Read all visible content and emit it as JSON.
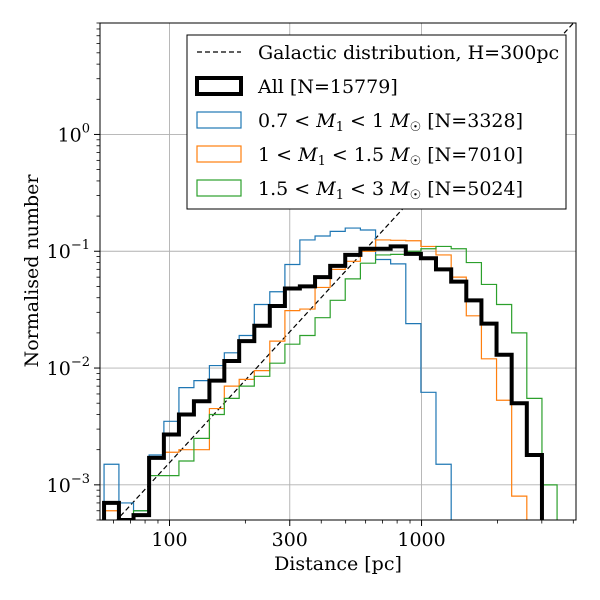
{
  "chart_data": {
    "type": "line",
    "subtype": "step-histogram",
    "xscale": "log",
    "yscale": "log",
    "xlabel": "Distance [pc]",
    "ylabel": "Normalised number",
    "xlim": [
      53,
      4100
    ],
    "ylim": [
      0.0005,
      9
    ],
    "x_ticks": [
      {
        "value": 100,
        "label": "100"
      },
      {
        "value": 300,
        "label": "300"
      },
      {
        "value": 1000,
        "label": "1000"
      }
    ],
    "y_ticks": [
      {
        "value": 0.001,
        "base": "10",
        "exp": "−3"
      },
      {
        "value": 0.01,
        "base": "10",
        "exp": "−2"
      },
      {
        "value": 0.1,
        "base": "10",
        "exp": "−1"
      },
      {
        "value": 1,
        "base": "10",
        "exp": "0"
      }
    ],
    "grid": true,
    "legend_position": "top-right",
    "bin_edges": [
      55,
      63,
      72,
      83,
      95,
      109,
      125,
      144,
      165,
      189,
      217,
      250,
      287,
      329,
      378,
      434,
      498,
      572,
      657,
      754,
      866,
      994,
      1141,
      1311,
      1505,
      1728,
      1984,
      2278,
      2616,
      3004,
      3449,
      3960
    ],
    "reference_line": {
      "name": "Galactic distribution, H=300pc",
      "color": "#000000",
      "style": "dashed",
      "points": [
        [
          55,
          0.00038
        ],
        [
          4100,
          9.5
        ]
      ]
    },
    "series": [
      {
        "name": "0.7 < M1 < 1 M☉ [N=3328]",
        "legend_parts": [
          "0.7 < ",
          "M",
          "1",
          " < 1 ",
          "M",
          "☉",
          " [N=3328]"
        ],
        "color": "#1f77b4",
        "width": 1.2,
        "values": [
          0.0015,
          0.0007,
          0.0006,
          0.0018,
          0.0035,
          0.0068,
          0.0078,
          0.0105,
          0.0135,
          0.019,
          0.035,
          0.045,
          0.077,
          0.125,
          0.135,
          0.148,
          0.158,
          0.152,
          0.085,
          0.078,
          0.024,
          0.0062,
          0.0015,
          0,
          0,
          0,
          0,
          0,
          0,
          0,
          0
        ]
      },
      {
        "name": "1 < M1 < 1.5 M☉ [N=7010]",
        "legend_parts": [
          "1 < ",
          "M",
          "1",
          " < 1.5 ",
          "M",
          "☉",
          " [N=7010]"
        ],
        "color": "#ff7f0e",
        "width": 1.2,
        "values": [
          0.0006,
          0.0005,
          0.00055,
          0.0017,
          0.0019,
          0.002,
          0.002,
          0.0045,
          0.007,
          0.008,
          0.0095,
          0.017,
          0.031,
          0.032,
          0.049,
          0.07,
          0.082,
          0.1,
          0.125,
          0.124,
          0.123,
          0.11,
          0.093,
          0.06,
          0.028,
          0.012,
          0.0053,
          0.0008,
          0,
          0,
          0
        ]
      },
      {
        "name": "1.5 < M1 < 3 M☉ [N=5024]",
        "legend_parts": [
          "1.5 < ",
          "M",
          "1",
          " < 3 ",
          "M",
          "☉",
          " [N=5024]"
        ],
        "color": "#2ca02c",
        "width": 1.2,
        "values": [
          0.0004,
          0.00035,
          0.0006,
          0.0012,
          0.0012,
          0.0016,
          0.0025,
          0.004,
          0.0055,
          0.007,
          0.0085,
          0.011,
          0.016,
          0.019,
          0.027,
          0.038,
          0.058,
          0.079,
          0.093,
          0.094,
          0.1,
          0.105,
          0.11,
          0.105,
          0.08,
          0.052,
          0.035,
          0.02,
          0.0055,
          0.001,
          0
        ]
      },
      {
        "name": "All [N=15779]",
        "legend_parts": [
          "All [N=15779]"
        ],
        "color": "#000000",
        "width": 4,
        "values": [
          0.0007,
          0.0005,
          0.00055,
          0.0017,
          0.0027,
          0.004,
          0.0052,
          0.0078,
          0.0115,
          0.017,
          0.023,
          0.034,
          0.048,
          0.05,
          0.06,
          0.075,
          0.093,
          0.105,
          0.105,
          0.11,
          0.095,
          0.087,
          0.07,
          0.055,
          0.038,
          0.024,
          0.013,
          0.005,
          0.0018,
          0.0003,
          0
        ]
      }
    ]
  }
}
